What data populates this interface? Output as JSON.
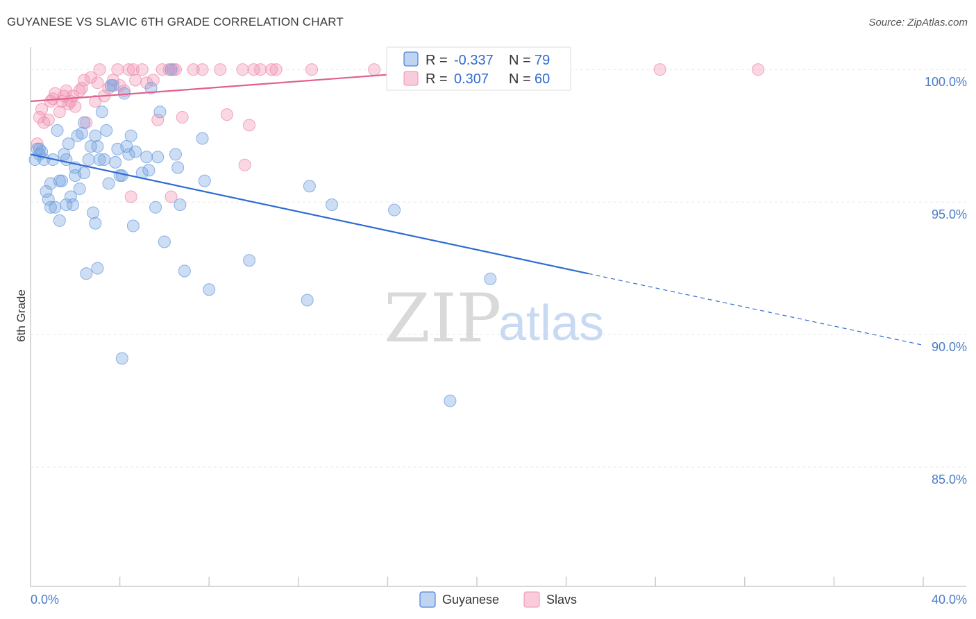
{
  "title": "GUYANESE VS SLAVIC 6TH GRADE CORRELATION CHART",
  "source": "Source: ZipAtlas.com",
  "watermark": {
    "zip": "ZIP",
    "atlas": "atlas"
  },
  "colors": {
    "guyanese": "#6fa0e0",
    "slavs": "#f08fb0",
    "guyanese_line": "#2f6bd1",
    "slavs_line": "#e0608f"
  },
  "legend": {
    "r_label": "R =",
    "n_label": "N =",
    "guyanese": {
      "r": "-0.337",
      "n": "79"
    },
    "slavs": {
      "r": "0.307",
      "n": "60"
    }
  },
  "chart_data": {
    "type": "scatter",
    "title": "GUYANESE VS SLAVIC 6TH GRADE CORRELATION CHART",
    "xlabel": "",
    "ylabel": "6th Grade",
    "xlim": [
      0,
      40
    ],
    "ylim": [
      80.5,
      101
    ],
    "x_tick_labels": [
      {
        "value": 0,
        "label": "0.0%"
      },
      {
        "value": 40,
        "label": "40.0%"
      }
    ],
    "y_tick_labels": [
      {
        "value": 100,
        "label": "100.0%"
      },
      {
        "value": 95,
        "label": "95.0%"
      },
      {
        "value": 90,
        "label": "90.0%"
      },
      {
        "value": 85,
        "label": "85.0%"
      }
    ],
    "grid": true,
    "legend_position": "top-center",
    "series": [
      {
        "name": "Guyanese",
        "trend": {
          "x0": 0,
          "y0": 96.8,
          "x1": 25,
          "y1": 92.3,
          "dash_to_x": 40,
          "dash_to_y": 89.6
        },
        "points": [
          [
            0.2,
            96.6
          ],
          [
            0.3,
            97.0
          ],
          [
            0.4,
            96.8
          ],
          [
            0.5,
            96.9
          ],
          [
            0.6,
            96.6
          ],
          [
            0.7,
            95.4
          ],
          [
            0.8,
            95.1
          ],
          [
            0.9,
            95.7
          ],
          [
            1.0,
            96.6
          ],
          [
            1.1,
            94.8
          ],
          [
            1.2,
            97.7
          ],
          [
            1.3,
            94.3
          ],
          [
            1.4,
            95.8
          ],
          [
            1.5,
            96.8
          ],
          [
            1.6,
            94.9
          ],
          [
            1.7,
            97.2
          ],
          [
            1.8,
            95.2
          ],
          [
            1.9,
            94.9
          ],
          [
            2.0,
            96.3
          ],
          [
            2.0,
            96.0
          ],
          [
            2.1,
            97.5
          ],
          [
            2.2,
            95.5
          ],
          [
            2.3,
            97.6
          ],
          [
            2.4,
            96.1
          ],
          [
            2.4,
            98.0
          ],
          [
            2.5,
            92.3
          ],
          [
            2.6,
            96.6
          ],
          [
            2.7,
            97.1
          ],
          [
            2.8,
            94.6
          ],
          [
            2.9,
            94.2
          ],
          [
            3.0,
            92.5
          ],
          [
            3.0,
            97.1
          ],
          [
            3.1,
            96.6
          ],
          [
            3.2,
            98.4
          ],
          [
            3.3,
            96.6
          ],
          [
            3.4,
            97.7
          ],
          [
            3.5,
            95.7
          ],
          [
            3.6,
            99.4
          ],
          [
            3.8,
            96.5
          ],
          [
            3.9,
            97.0
          ],
          [
            4.0,
            96.0
          ],
          [
            4.1,
            89.1
          ],
          [
            4.2,
            99.1
          ],
          [
            4.3,
            97.1
          ],
          [
            4.4,
            96.8
          ],
          [
            4.5,
            97.5
          ],
          [
            4.6,
            94.1
          ],
          [
            4.7,
            96.9
          ],
          [
            5.0,
            96.1
          ],
          [
            5.2,
            96.7
          ],
          [
            5.4,
            99.3
          ],
          [
            5.6,
            94.8
          ],
          [
            5.7,
            96.7
          ],
          [
            5.8,
            98.4
          ],
          [
            6.0,
            93.5
          ],
          [
            6.3,
            100.0
          ],
          [
            6.5,
            96.8
          ],
          [
            6.6,
            96.3
          ],
          [
            6.7,
            94.9
          ],
          [
            6.9,
            92.4
          ],
          [
            7.7,
            97.4
          ],
          [
            7.8,
            95.8
          ],
          [
            8.0,
            91.7
          ],
          [
            9.8,
            92.8
          ],
          [
            12.4,
            91.3
          ],
          [
            12.5,
            95.6
          ],
          [
            13.5,
            94.9
          ],
          [
            16.3,
            94.7
          ],
          [
            18.8,
            87.5
          ],
          [
            20.6,
            92.1
          ],
          [
            16.6,
            100.0
          ],
          [
            4.1,
            96.0
          ],
          [
            2.9,
            97.5
          ],
          [
            1.6,
            96.6
          ],
          [
            0.9,
            94.8
          ],
          [
            5.3,
            96.2
          ],
          [
            3.7,
            99.4
          ],
          [
            1.3,
            95.8
          ],
          [
            0.4,
            97.0
          ]
        ]
      },
      {
        "name": "Slavs",
        "trend": {
          "x0": 0,
          "y0": 98.8,
          "x1": 17.5,
          "y1": 99.9
        },
        "points": [
          [
            0.3,
            97.2
          ],
          [
            0.4,
            98.2
          ],
          [
            0.5,
            98.5
          ],
          [
            0.6,
            98.0
          ],
          [
            0.8,
            98.1
          ],
          [
            0.9,
            98.8
          ],
          [
            1.0,
            98.9
          ],
          [
            1.1,
            99.1
          ],
          [
            1.3,
            98.4
          ],
          [
            1.4,
            98.8
          ],
          [
            1.5,
            99.0
          ],
          [
            1.6,
            99.2
          ],
          [
            1.7,
            98.7
          ],
          [
            1.8,
            98.8
          ],
          [
            1.9,
            99.0
          ],
          [
            2.0,
            98.6
          ],
          [
            2.2,
            99.2
          ],
          [
            2.3,
            99.3
          ],
          [
            2.4,
            99.6
          ],
          [
            2.5,
            98.0
          ],
          [
            2.7,
            99.7
          ],
          [
            2.9,
            98.8
          ],
          [
            3.0,
            99.5
          ],
          [
            3.1,
            100.0
          ],
          [
            3.3,
            99.0
          ],
          [
            3.5,
            99.3
          ],
          [
            3.7,
            99.6
          ],
          [
            3.9,
            100.0
          ],
          [
            4.0,
            99.4
          ],
          [
            4.2,
            99.2
          ],
          [
            4.4,
            100.0
          ],
          [
            4.5,
            95.2
          ],
          [
            4.7,
            99.6
          ],
          [
            5.0,
            100.0
          ],
          [
            5.2,
            99.5
          ],
          [
            5.5,
            99.6
          ],
          [
            5.7,
            98.1
          ],
          [
            5.9,
            100.0
          ],
          [
            6.2,
            100.0
          ],
          [
            6.3,
            95.2
          ],
          [
            6.5,
            100.0
          ],
          [
            6.8,
            98.2
          ],
          [
            7.3,
            100.0
          ],
          [
            7.7,
            100.0
          ],
          [
            8.5,
            100.0
          ],
          [
            8.8,
            98.3
          ],
          [
            9.5,
            100.0
          ],
          [
            9.6,
            96.4
          ],
          [
            9.8,
            97.9
          ],
          [
            10.0,
            100.0
          ],
          [
            10.3,
            100.0
          ],
          [
            11.0,
            100.0
          ],
          [
            12.6,
            100.0
          ],
          [
            15.4,
            100.0
          ],
          [
            17.4,
            100.0
          ],
          [
            28.2,
            100.0
          ],
          [
            32.6,
            100.0
          ],
          [
            6.4,
            100.0
          ],
          [
            4.6,
            100.0
          ],
          [
            10.8,
            100.0
          ]
        ]
      }
    ]
  },
  "bottom_legend": {
    "guyanese": "Guyanese",
    "slavs": "Slavs"
  }
}
